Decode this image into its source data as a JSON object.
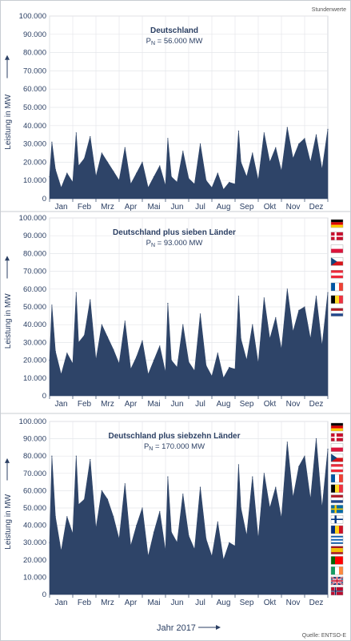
{
  "header_note": "Stundenwerte",
  "source": "Quelle: ENTSO-E",
  "x_title": "Jahr 2017",
  "colors": {
    "area": "#2e4468",
    "text": "#2b3f63",
    "grid": "#e4e6ea",
    "frame": "#c8ccd2"
  },
  "chart_data": [
    {
      "type": "area",
      "title": "Deutschland",
      "capacity": {
        "prefix": "P",
        "sub": "N",
        "value": " = 56.000 MW"
      },
      "ylabel": "Leistung in MW",
      "ylim": [
        0,
        100000
      ],
      "yticks": [
        "0",
        "10.000",
        "20.000",
        "30.000",
        "40.000",
        "50.000",
        "60.000",
        "70.000",
        "80.000",
        "90.000",
        "100.000"
      ],
      "xlabels": [
        "Jan",
        "Feb",
        "Mrz",
        "Apr",
        "Mai",
        "Jun",
        "Jul",
        "Aug",
        "Sep",
        "Okt",
        "Nov",
        "Dez"
      ],
      "series": [
        {
          "x_month": [
            0.0,
            0.1,
            0.25,
            0.5,
            0.75,
            1.0,
            1.15,
            1.25,
            1.5,
            1.75,
            2.0,
            2.25,
            2.5,
            2.75,
            3.0,
            3.25,
            3.5,
            3.75,
            4.0,
            4.25,
            4.5,
            4.75,
            5.0,
            5.1,
            5.25,
            5.5,
            5.75,
            6.0,
            6.25,
            6.5,
            6.75,
            7.0,
            7.25,
            7.5,
            7.75,
            8.0,
            8.15,
            8.25,
            8.5,
            8.75,
            9.0,
            9.25,
            9.5,
            9.75,
            10.0,
            10.25,
            10.5,
            10.75,
            11.0,
            11.25,
            11.5,
            11.75,
            12.0
          ],
          "values": [
            12000,
            31000,
            16000,
            6000,
            14000,
            9000,
            36000,
            18000,
            22000,
            34000,
            12000,
            25000,
            20000,
            15000,
            10000,
            28000,
            8000,
            14000,
            20000,
            6000,
            12000,
            18000,
            7000,
            33000,
            12000,
            9000,
            26000,
            11000,
            8000,
            30000,
            10000,
            6000,
            14000,
            5000,
            9000,
            8000,
            37000,
            20000,
            12000,
            25000,
            10000,
            36000,
            20000,
            28000,
            15000,
            39000,
            22000,
            30000,
            33000,
            20000,
            35000,
            16000,
            38000
          ]
        }
      ]
    },
    {
      "type": "area",
      "title": "Deutschland plus sieben Länder",
      "capacity": {
        "prefix": "P",
        "sub": "N",
        "value": " = 93.000 MW"
      },
      "ylabel": "Leistung in MW",
      "ylim": [
        0,
        100000
      ],
      "yticks": [
        "0",
        "10.000",
        "20.000",
        "30.000",
        "40.000",
        "50.000",
        "60.000",
        "70.000",
        "80.000",
        "90.000",
        "100.000"
      ],
      "xlabels": [
        "Jan",
        "Feb",
        "Mrz",
        "Apr",
        "Mai",
        "Jun",
        "Jul",
        "Aug",
        "Sep",
        "Okt",
        "Nov",
        "Dez"
      ],
      "flags": [
        "germany-flag",
        "denmark-flag",
        "poland-flag",
        "czech-flag",
        "austria-flag",
        "france-flag",
        "belgium-flag",
        "netherlands-flag"
      ],
      "series": [
        {
          "x_month": [
            0.0,
            0.1,
            0.25,
            0.5,
            0.75,
            1.0,
            1.15,
            1.25,
            1.5,
            1.75,
            2.0,
            2.25,
            2.5,
            2.75,
            3.0,
            3.25,
            3.5,
            3.75,
            4.0,
            4.25,
            4.5,
            4.75,
            5.0,
            5.1,
            5.25,
            5.5,
            5.75,
            6.0,
            6.25,
            6.5,
            6.75,
            7.0,
            7.25,
            7.5,
            7.75,
            8.0,
            8.15,
            8.25,
            8.5,
            8.75,
            9.0,
            9.25,
            9.5,
            9.75,
            10.0,
            10.25,
            10.5,
            10.75,
            11.0,
            11.25,
            11.5,
            11.75,
            12.0
          ],
          "values": [
            20000,
            51000,
            25000,
            12000,
            24000,
            18000,
            58000,
            30000,
            34000,
            54000,
            20000,
            40000,
            33000,
            26000,
            18000,
            42000,
            15000,
            22000,
            31000,
            12000,
            20000,
            28000,
            13000,
            52000,
            20000,
            16000,
            40000,
            19000,
            14000,
            46000,
            17000,
            11000,
            24000,
            10000,
            16000,
            15000,
            56000,
            32000,
            20000,
            40000,
            18000,
            55000,
            32000,
            44000,
            26000,
            60000,
            36000,
            48000,
            50000,
            32000,
            56000,
            28000,
            58000
          ]
        }
      ]
    },
    {
      "type": "area",
      "title": "Deutschland plus siebzehn Länder",
      "capacity": {
        "prefix": "P",
        "sub": "N",
        "value": " = 170.000 MW"
      },
      "ylabel": "Leistung in MW",
      "ylim": [
        0,
        100000
      ],
      "yticks": [
        "0",
        "10.000",
        "20.000",
        "30.000",
        "40.000",
        "50.000",
        "60.000",
        "70.000",
        "80.000",
        "90.000",
        "100.000"
      ],
      "xlabels": [
        "Jan",
        "Feb",
        "Mrz",
        "Apr",
        "Mai",
        "Jun",
        "Jul",
        "Aug",
        "Sep",
        "Okt",
        "Nov",
        "Dez"
      ],
      "flags": [
        "germany-flag",
        "denmark-flag",
        "poland-flag",
        "czech-flag",
        "austria-flag",
        "france-flag",
        "belgium-flag",
        "netherlands-flag",
        "sweden-flag",
        "finland-flag",
        "romania-flag",
        "greece-flag",
        "spain-flag",
        "portugal-flag",
        "ireland-flag",
        "uk-flag",
        "norway-flag"
      ],
      "series": [
        {
          "x_month": [
            0.0,
            0.1,
            0.25,
            0.5,
            0.75,
            1.0,
            1.15,
            1.25,
            1.5,
            1.75,
            2.0,
            2.25,
            2.5,
            2.75,
            3.0,
            3.25,
            3.5,
            3.75,
            4.0,
            4.25,
            4.5,
            4.75,
            5.0,
            5.1,
            5.25,
            5.5,
            5.75,
            6.0,
            6.25,
            6.5,
            6.75,
            7.0,
            7.25,
            7.5,
            7.75,
            8.0,
            8.15,
            8.25,
            8.5,
            8.75,
            9.0,
            9.25,
            9.5,
            9.75,
            10.0,
            10.25,
            10.5,
            10.75,
            11.0,
            11.25,
            11.5,
            11.75,
            12.0
          ],
          "values": [
            30000,
            80000,
            45000,
            25000,
            45000,
            35000,
            80000,
            52000,
            55000,
            78000,
            38000,
            60000,
            55000,
            45000,
            32000,
            64000,
            28000,
            40000,
            50000,
            22000,
            36000,
            48000,
            25000,
            68000,
            36000,
            30000,
            58000,
            34000,
            26000,
            62000,
            32000,
            22000,
            42000,
            20000,
            30000,
            28000,
            75000,
            50000,
            34000,
            68000,
            32000,
            70000,
            50000,
            62000,
            44000,
            88000,
            56000,
            74000,
            80000,
            55000,
            90000,
            50000,
            84000
          ]
        }
      ]
    }
  ]
}
